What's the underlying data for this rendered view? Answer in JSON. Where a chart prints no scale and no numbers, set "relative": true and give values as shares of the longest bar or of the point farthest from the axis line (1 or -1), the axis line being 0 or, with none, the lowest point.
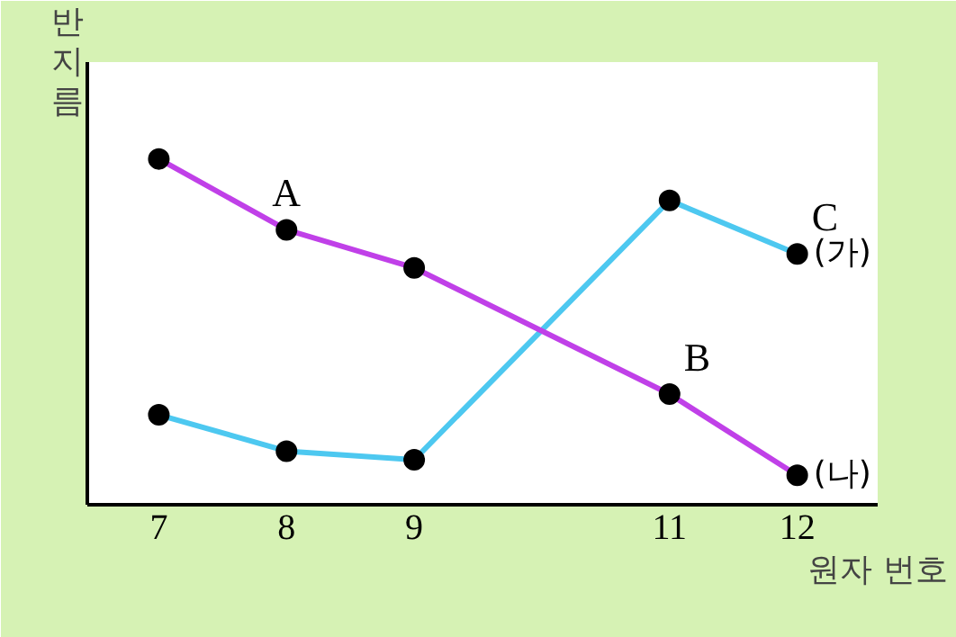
{
  "chart_data": {
    "type": "line",
    "relative": true,
    "xlabel": "원자 번호",
    "ylabel": "반지름",
    "x": [
      7,
      8,
      9,
      11,
      12
    ],
    "xlim": [
      6.44,
      12.63
    ],
    "xticks": [
      7,
      8,
      9,
      11,
      12
    ],
    "grid": false,
    "marker": "circle",
    "line_style": "solid",
    "series": [
      {
        "name": "(가)",
        "color": "#4dc8f0",
        "values": [
          0.26,
          0.155,
          0.13,
          0.88,
          0.725
        ]
      },
      {
        "name": "(나)",
        "color": "#c040e8",
        "values": [
          1,
          0.795,
          0.685,
          0.32,
          0.085
        ]
      }
    ],
    "annotations": [
      {
        "text": "A",
        "x": 8,
        "y": 0.795
      },
      {
        "text": "B",
        "x": 11,
        "y": 0.32
      },
      {
        "text": "C",
        "x": 12,
        "y": 0.725
      }
    ]
  }
}
